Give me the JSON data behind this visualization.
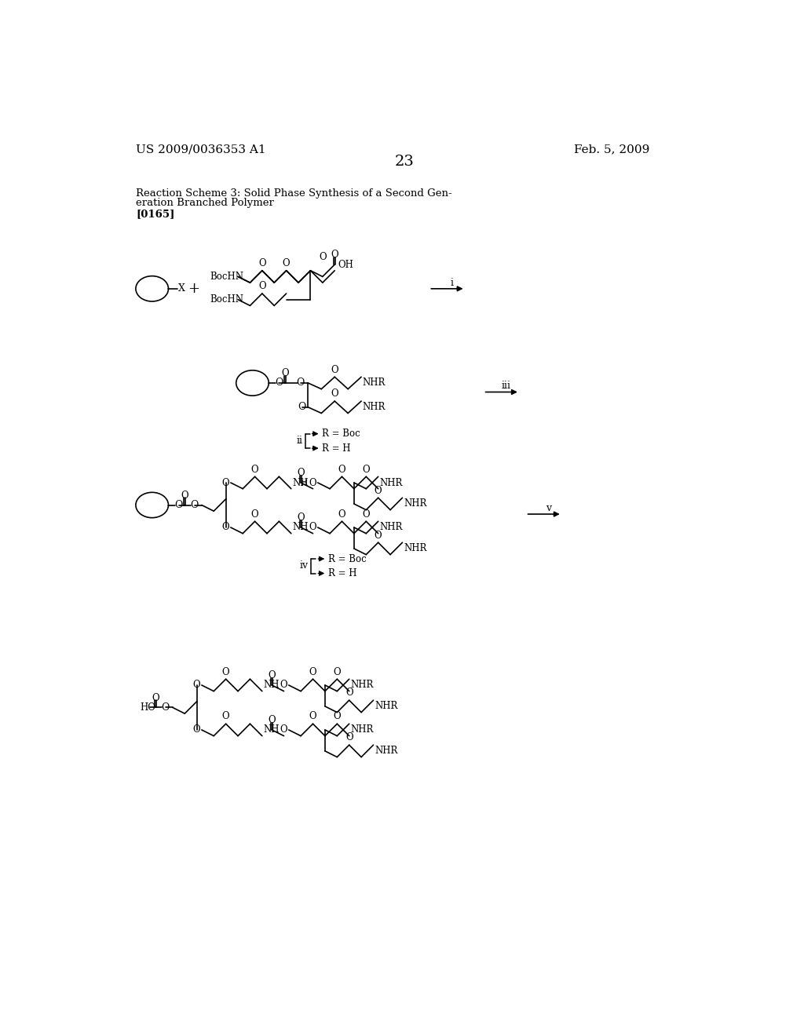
{
  "patent_number": "US 2009/0036353 A1",
  "patent_date": "Feb. 5, 2009",
  "page_number": "23",
  "title_line1": "Reaction Scheme 3: Solid Phase Synthesis of a Second Gen-",
  "title_line2": "eration Branched Polymer",
  "ref_number": "[0165]",
  "bg": "#ffffff"
}
